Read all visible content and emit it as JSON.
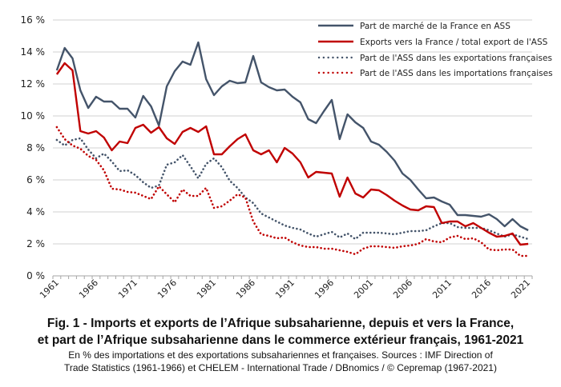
{
  "chart_data": {
    "type": "line",
    "title": "Fig. 1 - Imports et exports de l’Afrique subsaharienne, depuis et vers la France, et part de l’Afrique subsaharienne dans le commerce extérieur français, 1961-2021",
    "xlabel": "",
    "ylabel": "",
    "ylim": [
      0,
      16
    ],
    "yticks": [
      "0 %",
      "2 %",
      "4 %",
      "6 %",
      "8 %",
      "10 %",
      "12 %",
      "14 %",
      "16 %"
    ],
    "ytick_values": [
      0,
      2,
      4,
      6,
      8,
      10,
      12,
      14,
      16
    ],
    "xticks": [
      "1961",
      "1966",
      "1971",
      "1976",
      "1981",
      "1986",
      "1991",
      "1996",
      "2001",
      "2006",
      "2011",
      "2016",
      "2021"
    ],
    "grid": true,
    "legend_position": "top-right",
    "x_start": 1961,
    "x_end": 2021,
    "series": [
      {
        "name": "Part de marché de la France en ASS",
        "color": "#44546A",
        "style": "solid",
        "values": [
          12.85,
          14.25,
          13.6,
          11.6,
          10.5,
          11.2,
          10.9,
          10.9,
          10.45,
          10.45,
          9.9,
          11.25,
          10.6,
          9.4,
          11.85,
          12.8,
          13.4,
          13.2,
          14.6,
          12.3,
          11.3,
          11.85,
          12.2,
          12.05,
          12.1,
          13.75,
          12.1,
          11.8,
          11.6,
          11.65,
          11.2,
          10.85,
          9.8,
          9.55,
          10.3,
          11.0,
          8.55,
          10.1,
          9.6,
          9.25,
          8.4,
          8.2,
          7.75,
          7.2,
          6.4,
          6.0,
          5.4,
          4.85,
          4.9,
          4.65,
          4.45,
          3.8,
          3.8,
          3.75,
          3.7,
          3.85,
          3.55,
          3.1,
          3.55,
          3.1,
          2.85
        ]
      },
      {
        "name": "Exports vers la France / total export de l'ASS",
        "color": "#C00000",
        "style": "solid",
        "values": [
          12.6,
          13.3,
          12.85,
          9.05,
          8.9,
          9.05,
          8.65,
          7.85,
          8.4,
          8.3,
          9.25,
          9.45,
          8.95,
          9.3,
          8.6,
          8.25,
          9.0,
          9.25,
          9.0,
          9.35,
          7.6,
          7.6,
          8.1,
          8.55,
          8.85,
          7.85,
          7.6,
          7.85,
          7.1,
          8.0,
          7.65,
          7.1,
          6.15,
          6.5,
          6.45,
          6.4,
          4.95,
          6.15,
          5.15,
          4.9,
          5.4,
          5.35,
          5.05,
          4.7,
          4.4,
          4.15,
          4.1,
          4.35,
          4.3,
          3.3,
          3.4,
          3.4,
          3.1,
          3.3,
          3.0,
          2.7,
          2.45,
          2.5,
          2.65,
          1.95,
          2.0
        ]
      },
      {
        "name": "Part de l'ASS dans les exportations françaises",
        "color": "#44546A",
        "style": "dotted",
        "values": [
          8.5,
          8.15,
          8.5,
          8.6,
          7.9,
          7.35,
          7.65,
          7.15,
          6.55,
          6.6,
          6.3,
          5.85,
          5.5,
          5.65,
          6.95,
          7.1,
          7.55,
          6.85,
          6.1,
          7.0,
          7.35,
          6.8,
          5.95,
          5.5,
          4.9,
          4.55,
          3.9,
          3.65,
          3.4,
          3.15,
          3.0,
          2.9,
          2.65,
          2.45,
          2.6,
          2.75,
          2.4,
          2.65,
          2.3,
          2.7,
          2.7,
          2.7,
          2.65,
          2.6,
          2.7,
          2.8,
          2.8,
          2.85,
          3.1,
          3.3,
          3.3,
          3.05,
          3.0,
          3.0,
          3.0,
          2.85,
          2.65,
          2.45,
          2.6,
          2.45,
          2.3
        ]
      },
      {
        "name": "Part de l'ASS dans les importations françaises",
        "color": "#C00000",
        "style": "dotted",
        "values": [
          9.3,
          8.55,
          8.15,
          7.95,
          7.5,
          7.25,
          6.6,
          5.45,
          5.4,
          5.25,
          5.2,
          5.0,
          4.8,
          5.6,
          5.1,
          4.6,
          5.4,
          5.0,
          5.0,
          5.5,
          4.25,
          4.35,
          4.7,
          5.1,
          4.9,
          3.4,
          2.6,
          2.5,
          2.35,
          2.4,
          2.1,
          1.9,
          1.8,
          1.8,
          1.7,
          1.7,
          1.6,
          1.5,
          1.35,
          1.7,
          1.85,
          1.85,
          1.8,
          1.75,
          1.85,
          1.9,
          2.0,
          2.3,
          2.15,
          2.1,
          2.4,
          2.5,
          2.3,
          2.35,
          2.1,
          1.65,
          1.6,
          1.65,
          1.65,
          1.25,
          1.25
        ]
      }
    ]
  },
  "caption": {
    "title_line1": "Fig. 1 - Imports et exports de l’Afrique subsaharienne, depuis et vers la France,",
    "title_line2": "et part de l’Afrique subsaharienne dans le commerce extérieur français, 1961-2021",
    "source_line1": "En % des importations et des exportations subsahariennes et françaises. Sources : IMF Direction of",
    "source_line2": "Trade Statistics (1961-1966) et CHELEM - International Trade / DBnomics / © Cepremap (1967-2021)"
  }
}
